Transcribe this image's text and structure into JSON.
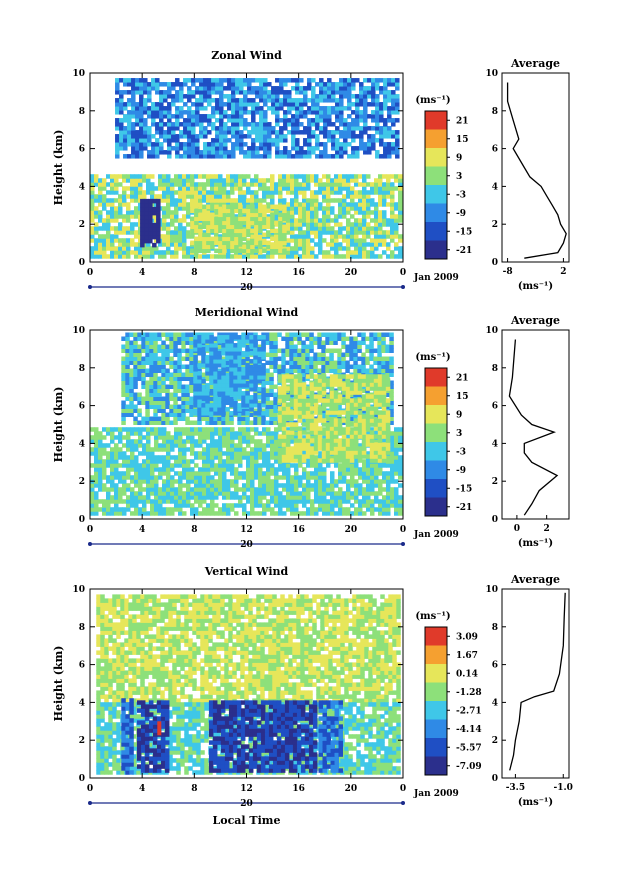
{
  "chart_data": [
    {
      "type": "heatmap",
      "title": "Zonal Wind",
      "ylabel": "Height (km)",
      "xlabel": "",
      "ylim": [
        0,
        10
      ],
      "xlim": [
        0,
        24
      ],
      "x_ticks": [
        "0",
        "4",
        "8",
        "12",
        "16",
        "20",
        "0"
      ],
      "y_ticks": [
        "0",
        "2",
        "4",
        "6",
        "8",
        "10"
      ],
      "day_label": "20",
      "date_label": "Jan 2009",
      "colorbar": {
        "unit": "(ms⁻¹)",
        "ticks": [
          "21",
          "15",
          "9",
          "3",
          "-3",
          "-9",
          "-15",
          "-21"
        ]
      },
      "average": {
        "title": "Average",
        "xlabel": "(ms⁻¹)",
        "x_ticks": [
          "-8",
          "2"
        ],
        "xlim": [
          -9,
          3
        ],
        "profile": [
          [
            -5,
            0.2
          ],
          [
            1,
            0.5
          ],
          [
            2,
            1.0
          ],
          [
            2.5,
            1.5
          ],
          [
            1.5,
            2.0
          ],
          [
            1,
            2.5
          ],
          [
            0,
            3.0
          ],
          [
            -1,
            3.5
          ],
          [
            -2,
            4.0
          ],
          [
            -4,
            4.5
          ],
          [
            -5,
            5.0
          ],
          [
            -7,
            6.0
          ],
          [
            -6,
            6.5
          ],
          [
            -7,
            7.5
          ],
          [
            -8,
            8.5
          ],
          [
            -8,
            9.5
          ]
        ]
      }
    },
    {
      "type": "heatmap",
      "title": "Meridional Wind",
      "ylabel": "Height (km)",
      "xlabel": "",
      "ylim": [
        0,
        10
      ],
      "xlim": [
        0,
        24
      ],
      "x_ticks": [
        "0",
        "4",
        "8",
        "12",
        "16",
        "20",
        "0"
      ],
      "y_ticks": [
        "0",
        "2",
        "4",
        "6",
        "8",
        "10"
      ],
      "day_label": "20",
      "date_label": "Jan 2009",
      "colorbar": {
        "unit": "(ms⁻¹)",
        "ticks": [
          "21",
          "15",
          "9",
          "3",
          "-3",
          "-9",
          "-15",
          "-21"
        ]
      },
      "average": {
        "title": "Average",
        "xlabel": "(ms⁻¹)",
        "x_ticks": [
          "0",
          "2"
        ],
        "xlim": [
          -1,
          3.5
        ],
        "profile": [
          [
            0.5,
            0.2
          ],
          [
            1,
            0.8
          ],
          [
            1.5,
            1.5
          ],
          [
            2.7,
            2.3
          ],
          [
            1,
            3.0
          ],
          [
            0.5,
            3.5
          ],
          [
            0.5,
            4.0
          ],
          [
            2.5,
            4.6
          ],
          [
            1,
            5.0
          ],
          [
            0.3,
            5.5
          ],
          [
            -0.5,
            6.5
          ],
          [
            -0.3,
            7.5
          ],
          [
            -0.2,
            8.5
          ],
          [
            -0.1,
            9.5
          ]
        ]
      }
    },
    {
      "type": "heatmap",
      "title": "Vertical Wind",
      "ylabel": "Height (km)",
      "xlabel": "Local Time",
      "ylim": [
        0,
        10
      ],
      "xlim": [
        0,
        24
      ],
      "x_ticks": [
        "0",
        "4",
        "8",
        "12",
        "16",
        "20",
        "0"
      ],
      "y_ticks": [
        "0",
        "2",
        "4",
        "6",
        "8",
        "10"
      ],
      "day_label": "20",
      "date_label": "Jan 2009",
      "colorbar": {
        "unit": "(ms⁻¹)",
        "ticks": [
          "3.09",
          "1.67",
          "0.14",
          "-1.28",
          "-2.71",
          "-4.14",
          "-5.57",
          "-7.09"
        ]
      },
      "average": {
        "title": "Average",
        "xlabel": "(ms⁻¹)",
        "x_ticks": [
          "-3.5",
          "-1.0"
        ],
        "xlim": [
          -4.2,
          -0.7
        ],
        "profile": [
          [
            -3.8,
            0.4
          ],
          [
            -3.6,
            1.2
          ],
          [
            -3.5,
            2.0
          ],
          [
            -3.3,
            3.0
          ],
          [
            -3.2,
            4.0
          ],
          [
            -2.5,
            4.3
          ],
          [
            -1.5,
            4.6
          ],
          [
            -1.2,
            5.5
          ],
          [
            -1.0,
            7.0
          ],
          [
            -0.95,
            8.5
          ],
          [
            -0.9,
            9.8
          ]
        ]
      }
    }
  ],
  "colors": {
    "colormap": [
      "#2b2f8c",
      "#1f4fc4",
      "#2f8ae6",
      "#3fc7e8",
      "#8de07a",
      "#e6e65a",
      "#f5a030",
      "#e03a2a"
    ]
  }
}
